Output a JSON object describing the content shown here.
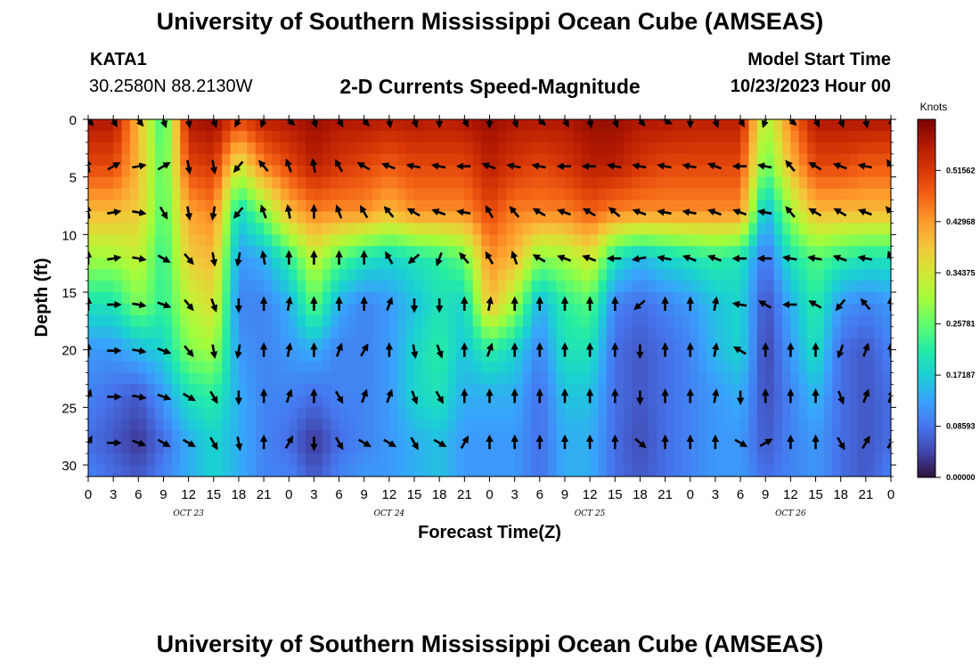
{
  "header": {
    "title": "University of Southern Mississippi Ocean Cube (AMSEAS)",
    "station_id": "KATA1",
    "station_coords": "30.2580N  88.2130W",
    "subtitle": "2-D Currents Speed-Magnitude",
    "model_label": "Model Start Time",
    "model_date": "10/23/2023 Hour 00"
  },
  "footer": {
    "title": "University of Southern Mississippi Ocean Cube (AMSEAS)"
  },
  "chart_data": {
    "type": "heatmap",
    "title": "2-D Currents Speed-Magnitude",
    "xlabel": "Forecast Time(Z)",
    "ylabel": "Depth (ft)",
    "x_range_hours": [
      0,
      96
    ],
    "ylim": [
      0,
      31
    ],
    "y_inverted": true,
    "x_ticks": [
      "0",
      "3",
      "6",
      "9",
      "12",
      "15",
      "18",
      "21",
      "0",
      "3",
      "6",
      "9",
      "12",
      "15",
      "18",
      "21",
      "0",
      "3",
      "6",
      "9",
      "12",
      "15",
      "18",
      "21",
      "0",
      "3",
      "6",
      "9",
      "12",
      "15",
      "18",
      "21",
      "0"
    ],
    "day_labels": [
      {
        "hour": 12,
        "label": "OCT 23"
      },
      {
        "hour": 36,
        "label": "OCT 24"
      },
      {
        "hour": 60,
        "label": "OCT 25"
      },
      {
        "hour": 84,
        "label": "OCT 26"
      }
    ],
    "y_ticks": [
      0,
      5,
      10,
      15,
      20,
      25,
      30
    ],
    "colorbar": {
      "title": "Knots",
      "min": 0.0,
      "max": 0.6015,
      "tick_labels": [
        "0.00000",
        "0.08593",
        "0.17187",
        "0.25781",
        "0.34375",
        "0.42968",
        "0.51562"
      ],
      "tick_values": [
        0.0,
        0.08593,
        0.17187,
        0.25781,
        0.34375,
        0.42968,
        0.51562
      ],
      "colors": [
        "#30123b",
        "#4145ab",
        "#4675ed",
        "#39a2fc",
        "#1bcfd4",
        "#24eca6",
        "#61fc6c",
        "#a4fc3b",
        "#d1e834",
        "#f3c63a",
        "#fe9b2d",
        "#f36315",
        "#d93806",
        "#b11901",
        "#7a0402"
      ]
    },
    "speed_columns_hours": [
      0,
      3,
      6,
      9,
      12,
      15,
      18,
      21,
      24,
      27,
      30,
      33,
      36,
      39,
      42,
      45,
      48,
      51,
      54,
      57,
      60,
      63,
      66,
      69,
      72,
      75,
      78,
      81,
      84,
      87,
      90,
      93,
      96
    ],
    "speed_rows_depth_ft": [
      0,
      4,
      8,
      12,
      16,
      20,
      24,
      28,
      31
    ],
    "speed_knots": [
      [
        0.56,
        0.56,
        0.4,
        0.22,
        0.56,
        0.58,
        0.5,
        0.55,
        0.56,
        0.58,
        0.56,
        0.56,
        0.55,
        0.56,
        0.55,
        0.56,
        0.58,
        0.56,
        0.56,
        0.56,
        0.58,
        0.58,
        0.56,
        0.56,
        0.55,
        0.55,
        0.55,
        0.3,
        0.45,
        0.56,
        0.56,
        0.56,
        0.56
      ],
      [
        0.5,
        0.5,
        0.4,
        0.24,
        0.5,
        0.52,
        0.34,
        0.45,
        0.5,
        0.55,
        0.52,
        0.5,
        0.48,
        0.5,
        0.5,
        0.5,
        0.55,
        0.52,
        0.5,
        0.52,
        0.55,
        0.55,
        0.52,
        0.5,
        0.5,
        0.5,
        0.5,
        0.25,
        0.4,
        0.5,
        0.5,
        0.48,
        0.48
      ],
      [
        0.4,
        0.4,
        0.38,
        0.24,
        0.42,
        0.45,
        0.18,
        0.28,
        0.4,
        0.45,
        0.44,
        0.44,
        0.4,
        0.44,
        0.44,
        0.44,
        0.5,
        0.45,
        0.45,
        0.45,
        0.48,
        0.45,
        0.44,
        0.44,
        0.44,
        0.44,
        0.44,
        0.14,
        0.3,
        0.4,
        0.4,
        0.4,
        0.4
      ],
      [
        0.3,
        0.3,
        0.33,
        0.22,
        0.38,
        0.4,
        0.12,
        0.14,
        0.22,
        0.33,
        0.25,
        0.2,
        0.18,
        0.2,
        0.22,
        0.26,
        0.44,
        0.4,
        0.28,
        0.3,
        0.35,
        0.2,
        0.15,
        0.18,
        0.2,
        0.22,
        0.2,
        0.08,
        0.2,
        0.25,
        0.22,
        0.2,
        0.2
      ],
      [
        0.2,
        0.2,
        0.28,
        0.22,
        0.32,
        0.36,
        0.1,
        0.1,
        0.14,
        0.26,
        0.14,
        0.1,
        0.12,
        0.16,
        0.2,
        0.18,
        0.4,
        0.3,
        0.14,
        0.22,
        0.25,
        0.1,
        0.08,
        0.1,
        0.12,
        0.16,
        0.18,
        0.05,
        0.14,
        0.22,
        0.12,
        0.1,
        0.12
      ],
      [
        0.12,
        0.12,
        0.15,
        0.18,
        0.28,
        0.3,
        0.12,
        0.1,
        0.12,
        0.14,
        0.1,
        0.1,
        0.12,
        0.18,
        0.22,
        0.16,
        0.22,
        0.18,
        0.1,
        0.2,
        0.2,
        0.08,
        0.06,
        0.08,
        0.1,
        0.15,
        0.18,
        0.04,
        0.12,
        0.2,
        0.08,
        0.06,
        0.1
      ],
      [
        0.1,
        0.08,
        0.06,
        0.12,
        0.2,
        0.22,
        0.14,
        0.1,
        0.1,
        0.08,
        0.1,
        0.1,
        0.12,
        0.18,
        0.2,
        0.14,
        0.14,
        0.14,
        0.08,
        0.16,
        0.16,
        0.08,
        0.06,
        0.08,
        0.1,
        0.12,
        0.14,
        0.05,
        0.1,
        0.15,
        0.08,
        0.06,
        0.08
      ],
      [
        0.08,
        0.06,
        0.03,
        0.08,
        0.14,
        0.18,
        0.14,
        0.1,
        0.08,
        0.03,
        0.08,
        0.1,
        0.12,
        0.14,
        0.16,
        0.12,
        0.12,
        0.12,
        0.08,
        0.14,
        0.14,
        0.08,
        0.05,
        0.08,
        0.1,
        0.12,
        0.12,
        0.06,
        0.1,
        0.12,
        0.08,
        0.06,
        0.08
      ],
      [
        0.1,
        0.08,
        0.06,
        0.1,
        0.14,
        0.18,
        0.14,
        0.1,
        0.1,
        0.06,
        0.1,
        0.12,
        0.12,
        0.14,
        0.16,
        0.12,
        0.12,
        0.12,
        0.08,
        0.14,
        0.14,
        0.08,
        0.06,
        0.08,
        0.1,
        0.12,
        0.12,
        0.08,
        0.1,
        0.12,
        0.08,
        0.06,
        0.1
      ]
    ],
    "vector_depths_ft": [
      0,
      4,
      8,
      12,
      16,
      20,
      24,
      28
    ],
    "vector_directions_deg": [
      [
        135,
        150,
        140,
        160,
        170,
        160,
        210,
        200,
        130,
        160,
        150,
        140,
        170,
        160,
        180,
        150,
        180,
        160,
        130,
        150,
        170,
        160,
        140,
        120,
        180,
        160,
        150,
        200,
        130,
        150,
        160,
        170,
        160
      ],
      [
        350,
        60,
        80,
        60,
        170,
        170,
        220,
        320,
        340,
        350,
        330,
        300,
        290,
        280,
        280,
        270,
        290,
        280,
        280,
        270,
        270,
        280,
        280,
        280,
        280,
        290,
        270,
        280,
        320,
        300,
        290,
        280,
        330
      ],
      [
        350,
        80,
        100,
        150,
        170,
        190,
        220,
        340,
        350,
        0,
        340,
        330,
        320,
        300,
        290,
        280,
        330,
        320,
        300,
        290,
        300,
        310,
        290,
        280,
        280,
        290,
        290,
        280,
        320,
        300,
        300,
        290,
        320
      ],
      [
        0,
        80,
        100,
        120,
        140,
        170,
        190,
        350,
        0,
        0,
        0,
        0,
        330,
        230,
        200,
        320,
        330,
        340,
        300,
        290,
        290,
        270,
        260,
        280,
        290,
        290,
        270,
        270,
        280,
        280,
        290,
        280,
        340
      ],
      [
        0,
        90,
        100,
        110,
        140,
        160,
        180,
        0,
        10,
        0,
        0,
        0,
        20,
        180,
        180,
        0,
        10,
        0,
        0,
        0,
        0,
        0,
        230,
        0,
        0,
        10,
        280,
        300,
        270,
        300,
        220,
        320,
        0
      ],
      [
        0,
        90,
        100,
        110,
        140,
        170,
        190,
        0,
        10,
        0,
        20,
        30,
        0,
        170,
        160,
        0,
        20,
        0,
        0,
        0,
        0,
        0,
        180,
        0,
        0,
        10,
        300,
        0,
        0,
        0,
        200,
        20,
        0
      ],
      [
        20,
        90,
        100,
        110,
        120,
        150,
        180,
        0,
        20,
        0,
        150,
        20,
        20,
        160,
        150,
        0,
        0,
        0,
        0,
        0,
        0,
        0,
        180,
        0,
        0,
        10,
        180,
        0,
        0,
        0,
        160,
        20,
        20
      ],
      [
        30,
        90,
        110,
        120,
        120,
        150,
        170,
        0,
        30,
        180,
        150,
        120,
        120,
        150,
        120,
        30,
        0,
        0,
        0,
        0,
        0,
        0,
        130,
        0,
        0,
        0,
        120,
        60,
        0,
        0,
        150,
        30,
        30
      ]
    ]
  }
}
